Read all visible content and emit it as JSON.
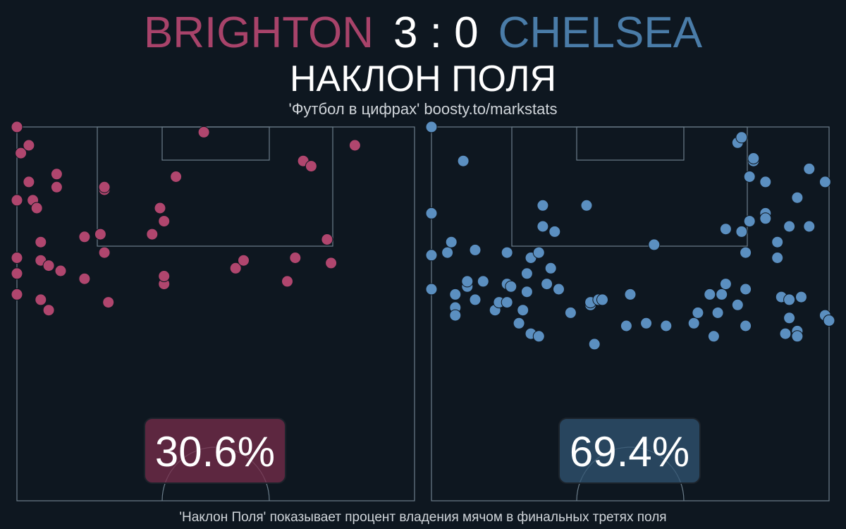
{
  "header": {
    "home_team": "BRIGHTON",
    "score": "3 : 0",
    "away_team": "CHELSEA",
    "title": "НАКЛОН ПОЛЯ",
    "subtitle": "'Футбол в цифрах' boosty.to/markstats"
  },
  "footer": {
    "note": "'Наклон Поля' показывает процент владения мячом в финальных третях поля"
  },
  "colors": {
    "background": "#0e1720",
    "home": "#b0466e",
    "away": "#5b8fc0",
    "pitch_lines": "#6b7d8a"
  },
  "chart_data": [
    {
      "type": "scatter",
      "team": "BRIGHTON",
      "value_label": "30.6%",
      "field_tilt_pct": 30.6,
      "x": [
        0,
        0,
        0,
        0,
        0,
        1,
        3,
        3,
        4,
        5,
        6,
        6,
        6,
        8,
        8,
        10,
        10,
        11,
        17,
        17,
        21,
        22,
        22,
        22,
        23,
        34,
        36,
        37,
        37,
        37,
        40,
        47,
        55,
        57,
        68,
        70,
        70,
        72,
        74,
        78,
        79,
        85
      ],
      "y": [
        100,
        72,
        50,
        44,
        36,
        90,
        93,
        79,
        72,
        69,
        56,
        49,
        34,
        47,
        30,
        77,
        82,
        45,
        58,
        42,
        59,
        52,
        76,
        77,
        33,
        59,
        69,
        64,
        40,
        43,
        81,
        98,
        46,
        49,
        41,
        50,
        50,
        87,
        85,
        57,
        48,
        93
      ]
    },
    {
      "type": "scatter",
      "team": "CHELSEA",
      "value_label": "69.4%",
      "field_tilt_pct": 69.4,
      "x": [
        0,
        0,
        0,
        0,
        4,
        5,
        6,
        6,
        6,
        8,
        9,
        9,
        11,
        11,
        13,
        16,
        17,
        19,
        19,
        19,
        20,
        22,
        23,
        24,
        24,
        25,
        25,
        27,
        27,
        28,
        28,
        29,
        30,
        31,
        32,
        35,
        39,
        40,
        40,
        41,
        42,
        43,
        49,
        50,
        54,
        54,
        56,
        59,
        66,
        67,
        70,
        71,
        73,
        72,
        74,
        74,
        77,
        77,
        78,
        78,
        79,
        79,
        79,
        80,
        80,
        81,
        81,
        84,
        84,
        84,
        87,
        87,
        87,
        88,
        89,
        90,
        90,
        90,
        92,
        92,
        92,
        93,
        95,
        95,
        99,
        99,
        100,
        100
      ],
      "y": [
        38,
        51,
        67,
        100,
        52,
        56,
        36,
        31,
        28,
        87,
        39,
        41,
        34,
        53,
        41,
        30,
        33,
        52,
        33,
        40,
        39,
        25,
        30,
        37,
        44,
        21,
        50,
        52,
        20,
        62,
        70,
        40,
        46,
        60,
        38,
        29,
        70,
        32,
        33,
        17,
        34,
        34,
        24,
        36,
        25,
        25,
        55,
        24,
        25,
        29,
        36,
        20,
        36,
        29,
        40,
        61,
        94,
        32,
        96,
        60,
        38,
        24,
        52,
        81,
        64,
        87,
        88,
        67,
        79,
        65,
        56,
        56,
        50,
        35,
        21,
        62,
        27,
        34,
        22,
        20,
        73,
        35,
        84,
        62,
        79,
        28,
        26,
        26
      ]
    }
  ]
}
